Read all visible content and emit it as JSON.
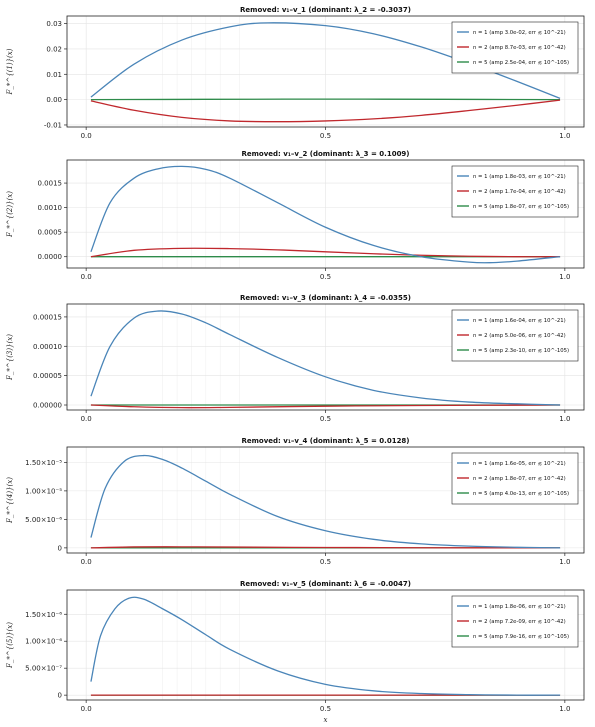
{
  "colors": {
    "n1": "#4a85b8",
    "n2": "#c0282d",
    "n5": "#2e8b4a"
  },
  "chart_data": [
    {
      "type": "line",
      "title": "Removed: v₁–v_1  (dominant: λ_2 = -0.3037)",
      "ylabel": "F_*^{(1)}(x)",
      "xlabel": "",
      "xlim": [
        -0.04,
        1.04
      ],
      "ylim": [
        -0.0108,
        0.033
      ],
      "xticks": [
        0.0,
        0.5,
        1.0
      ],
      "xtick_labels": [
        "0.0",
        "0.5",
        "1.0"
      ],
      "yticks": [
        -0.01,
        0.0,
        0.01,
        0.02,
        0.03
      ],
      "ytick_labels": [
        "-0.01",
        "0.00",
        "0.01",
        "0.02",
        "0.03"
      ],
      "legend_position": "top-right",
      "series": [
        {
          "name": "n = 1  (amp 3.0e-02, err ≲ 10^-21)",
          "color_key": "n1",
          "x": [
            0.01,
            0.1,
            0.2,
            0.3,
            0.38,
            0.5,
            0.6,
            0.7,
            0.8,
            0.9,
            0.99
          ],
          "y": [
            0.001,
            0.014,
            0.0235,
            0.0287,
            0.0303,
            0.0292,
            0.026,
            0.0208,
            0.0143,
            0.0072,
            0.0005
          ]
        },
        {
          "name": "n = 2  (amp 8.7e-03, err ≲ 10^-42)",
          "color_key": "n2",
          "x": [
            0.01,
            0.1,
            0.2,
            0.3,
            0.4,
            0.5,
            0.6,
            0.7,
            0.8,
            0.9,
            0.99
          ],
          "y": [
            -0.0005,
            -0.0042,
            -0.007,
            -0.0084,
            -0.0087,
            -0.0084,
            -0.0076,
            -0.0062,
            -0.0043,
            -0.0022,
            -0.0002
          ]
        },
        {
          "name": "n = 5  (amp 2.5e-04, err ≲ 10^-105)",
          "color_key": "n5",
          "x": [
            0.01,
            0.25,
            0.5,
            0.75,
            0.99
          ],
          "y": [
            0.0,
            0.00012,
            0.0002,
            0.00012,
            0.0
          ]
        }
      ]
    },
    {
      "type": "line",
      "title": "Removed: v₁–v_2  (dominant: λ_3 = 0.1009)",
      "ylabel": "F_*^{(2)}(x)",
      "xlabel": "",
      "xlim": [
        -0.04,
        1.04
      ],
      "ylim": [
        -0.00023,
        0.00197
      ],
      "xticks": [
        0.0,
        0.5,
        1.0
      ],
      "xtick_labels": [
        "0.0",
        "0.5",
        "1.0"
      ],
      "yticks": [
        0.0,
        0.0005,
        0.001,
        0.0015
      ],
      "ytick_labels": [
        "0.0000",
        "0.0005",
        "0.0010",
        "0.0015"
      ],
      "legend_position": "top-right",
      "series": [
        {
          "name": "n = 1  (amp 1.8e-03, err ≲ 10^-21)",
          "color_key": "n1",
          "x": [
            0.01,
            0.05,
            0.1,
            0.15,
            0.2,
            0.25,
            0.3,
            0.4,
            0.5,
            0.6,
            0.7,
            0.8,
            0.85,
            0.9,
            0.99
          ],
          "y": [
            0.0001,
            0.0011,
            0.0016,
            0.00179,
            0.00184,
            0.00178,
            0.0016,
            0.0011,
            0.0006,
            0.00023,
            0.0,
            -0.00011,
            -0.00012,
            -9e-05,
            0.0
          ]
        },
        {
          "name": "n = 2  (amp 1.7e-04, err ≲ 10^-42)",
          "color_key": "n2",
          "x": [
            0.01,
            0.1,
            0.2,
            0.3,
            0.4,
            0.5,
            0.6,
            0.7,
            0.8,
            0.9,
            0.99
          ],
          "y": [
            0.0,
            0.00013,
            0.00017,
            0.000165,
            0.00014,
            0.0001,
            6e-05,
            3e-05,
            1e-05,
            0.0,
            0.0
          ]
        },
        {
          "name": "n = 5  (amp 1.8e-07, err ≲ 10^-105)",
          "color_key": "n5",
          "x": [
            0.01,
            0.5,
            0.99
          ],
          "y": [
            0.0,
            0.0,
            0.0
          ]
        }
      ]
    },
    {
      "type": "line",
      "title": "Removed: v₁–v_3  (dominant: λ_4 = -0.0355)",
      "ylabel": "F_*^{(3)}(x)",
      "xlabel": "",
      "xlim": [
        -0.04,
        1.04
      ],
      "ylim": [
        -8.5e-06,
        0.000172
      ],
      "xticks": [
        0.0,
        0.5,
        1.0
      ],
      "xtick_labels": [
        "0.0",
        "0.5",
        "1.0"
      ],
      "yticks": [
        0.0,
        5e-05,
        0.0001,
        0.00015
      ],
      "ytick_labels": [
        "0.00000",
        "0.00005",
        "0.00010",
        "0.00015"
      ],
      "legend_position": "top-right",
      "series": [
        {
          "name": "n = 1  (amp 1.6e-04, err ≲ 10^-21)",
          "color_key": "n1",
          "x": [
            0.01,
            0.05,
            0.1,
            0.15,
            0.2,
            0.25,
            0.3,
            0.4,
            0.5,
            0.6,
            0.7,
            0.8,
            0.9,
            0.99
          ],
          "y": [
            1.5e-05,
            0.0001,
            0.000148,
            0.00016,
            0.000155,
            0.00014,
            0.00012,
            8.1e-05,
            4.8e-05,
            2.5e-05,
            1.2e-05,
            5e-06,
            2e-06,
            0.0
          ]
        },
        {
          "name": "n = 2  (amp 5.0e-06, err ≲ 10^-42)",
          "color_key": "n2",
          "x": [
            0.01,
            0.1,
            0.2,
            0.3,
            0.5,
            0.7,
            0.99
          ],
          "y": [
            0.0,
            -3e-06,
            -4.5e-06,
            -4e-06,
            -2e-06,
            -8e-07,
            0.0
          ]
        },
        {
          "name": "n = 5  (amp 2.3e-10, err ≲ 10^-105)",
          "color_key": "n5",
          "x": [
            0.01,
            0.5,
            0.99
          ],
          "y": [
            0.0,
            0.0,
            0.0
          ]
        }
      ]
    },
    {
      "type": "line",
      "title": "Removed: v₁–v_4  (dominant: λ_5 = 0.0128)",
      "ylabel": "F_*^{(4)}(x)",
      "xlabel": "",
      "xlim": [
        -0.04,
        1.04
      ],
      "ylim": [
        -9e-07,
        1.77e-05
      ],
      "xticks": [
        0.0,
        0.5,
        1.0
      ],
      "xtick_labels": [
        "0.0",
        "0.5",
        "1.0"
      ],
      "yticks": [
        0.0,
        5e-06,
        1e-05,
        1.5e-05
      ],
      "ytick_labels": [
        "0",
        "5.00×10⁻⁶",
        "1.00×10⁻⁵",
        "1.50×10⁻⁵"
      ],
      "legend_position": "top-right",
      "series": [
        {
          "name": "n = 1  (amp 1.6e-05, err ≲ 10^-21)",
          "color_key": "n1",
          "x": [
            0.01,
            0.04,
            0.08,
            0.12,
            0.16,
            0.2,
            0.25,
            0.3,
            0.4,
            0.5,
            0.6,
            0.7,
            0.8,
            0.9,
            0.99
          ],
          "y": [
            1.8e-06,
            1.05e-05,
            1.52e-05,
            1.62e-05,
            1.55e-05,
            1.4e-05,
            1.17e-05,
            9.4e-06,
            5.5e-06,
            3e-06,
            1.5e-06,
            7e-07,
            3e-07,
            1e-07,
            0.0
          ]
        },
        {
          "name": "n = 2  (amp 1.8e-07, err ≲ 10^-42)",
          "color_key": "n2",
          "x": [
            0.01,
            0.1,
            0.2,
            0.3,
            0.5,
            0.7,
            0.99
          ],
          "y": [
            0.0,
            1.6e-07,
            1.8e-07,
            1.4e-07,
            7e-08,
            2e-08,
            0.0
          ]
        },
        {
          "name": "n = 5  (amp 4.0e-13, err ≲ 10^-105)",
          "color_key": "n5",
          "x": [
            0.01,
            0.5,
            0.99
          ],
          "y": [
            0.0,
            0.0,
            0.0
          ]
        }
      ]
    },
    {
      "type": "line",
      "title": "Removed: v₁–v_5  (dominant: λ_6 = -0.0047)",
      "ylabel": "F_*^{(5)}(x)",
      "xlabel": "x",
      "xlim": [
        -0.04,
        1.04
      ],
      "ylim": [
        -9e-08,
        1.95e-06
      ],
      "xticks": [
        0.0,
        0.5,
        1.0
      ],
      "xtick_labels": [
        "0.0",
        "0.5",
        "1.0"
      ],
      "yticks": [
        0.0,
        5e-07,
        1e-06,
        1.5e-06
      ],
      "ytick_labels": [
        "0",
        "5.00×10⁻⁷",
        "1.00×10⁻⁶",
        "1.50×10⁻⁶"
      ],
      "legend_position": "top-right",
      "series": [
        {
          "name": "n = 1  (amp 1.8e-06, err ≲ 10^-21)",
          "color_key": "n1",
          "x": [
            0.01,
            0.03,
            0.06,
            0.09,
            0.12,
            0.16,
            0.2,
            0.25,
            0.3,
            0.4,
            0.5,
            0.6,
            0.7,
            0.8,
            0.9,
            0.99
          ],
          "y": [
            2.5e-07,
            1.1e-06,
            1.6e-06,
            1.8e-06,
            1.78e-06,
            1.6e-06,
            1.4e-06,
            1.12e-06,
            8.5e-07,
            4.5e-07,
            2e-07,
            8e-08,
            3e-08,
            1e-08,
            0.0,
            0.0
          ]
        },
        {
          "name": "n = 2  (amp 7.2e-09, err ≲ 10^-42)",
          "color_key": "n2",
          "x": [
            0.01,
            0.5,
            0.99
          ],
          "y": [
            0.0,
            0.0,
            0.0
          ]
        },
        {
          "name": "n = 5  (amp 7.9e-16, err ≲ 10^-105)",
          "color_key": "n5",
          "x": [
            0.01,
            0.5,
            0.99
          ],
          "y": [
            0.0,
            0.0,
            0.0
          ]
        }
      ]
    }
  ]
}
